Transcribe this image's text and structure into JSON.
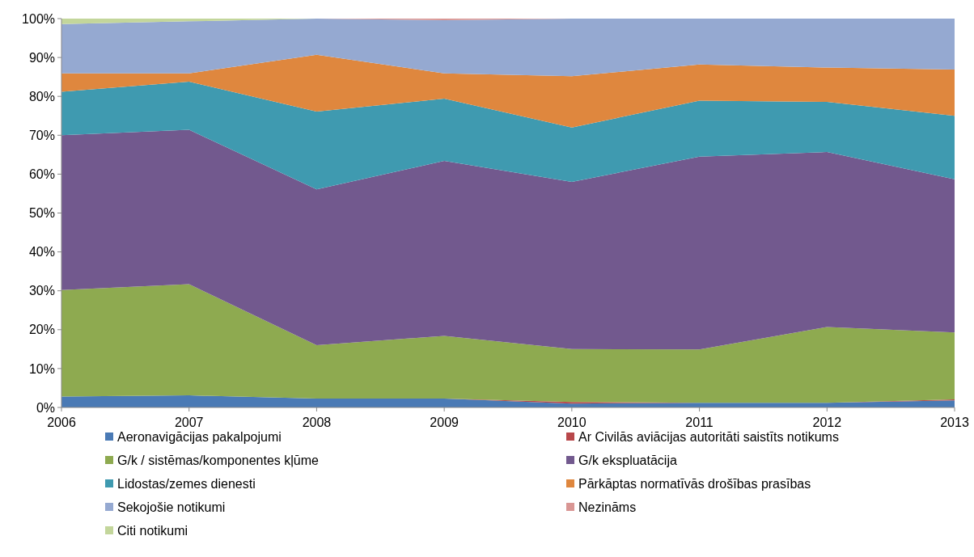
{
  "chart_data": {
    "type": "area",
    "stacked": true,
    "x": [
      2006,
      2007,
      2008,
      2009,
      2010,
      2011,
      2012,
      2013
    ],
    "xlim": [
      2006,
      2013
    ],
    "xticks": [
      2006,
      2007,
      2008,
      2009,
      2010,
      2011,
      2012,
      2013
    ],
    "ylim": [
      0,
      100
    ],
    "yticks": [
      {
        "value": 0,
        "label": "0%"
      },
      {
        "value": 10,
        "label": "10%"
      },
      {
        "value": 20,
        "label": "20%"
      },
      {
        "value": 30,
        "label": "30%"
      },
      {
        "value": 40,
        "label": "40%"
      },
      {
        "value": 50,
        "label": "50%"
      },
      {
        "value": 60,
        "label": "60%"
      },
      {
        "value": 70,
        "label": "70%"
      },
      {
        "value": 80,
        "label": "80%"
      },
      {
        "value": 90,
        "label": "90%"
      },
      {
        "value": 100,
        "label": "100%"
      }
    ],
    "legend": "bottom",
    "series": [
      {
        "name": "Aeronavigācijas pakalpojumi",
        "color": "#4a7ab5",
        "values": [
          2.8,
          3.1,
          2.3,
          2.3,
          1.0,
          1.2,
          1.2,
          1.8
        ]
      },
      {
        "name": "Ar Civilās aviācijas autoritāti saistīts notikums",
        "color": "#b8474a",
        "values": [
          0,
          0,
          0,
          0,
          0.4,
          0,
          0,
          0.3
        ]
      },
      {
        "name": "G/k / sistēmas/komponentes kļūme",
        "color": "#8eaa50",
        "values": [
          27.4,
          28.6,
          13.7,
          16.1,
          13.6,
          13.7,
          19.5,
          17.2
        ]
      },
      {
        "name": "G/k ekspluatācija",
        "color": "#72598e",
        "values": [
          39.8,
          39.7,
          40.1,
          45.0,
          43.0,
          49.6,
          45.0,
          39.4
        ]
      },
      {
        "name": "Lidostas/zemes dienesti",
        "color": "#3f9ab0",
        "values": [
          11.2,
          12.4,
          20.0,
          16.0,
          14.0,
          14.4,
          12.9,
          16.3
        ]
      },
      {
        "name": "Pārkāptas normatīvās drošības prasības",
        "color": "#df873e",
        "values": [
          4.7,
          2.1,
          14.6,
          6.5,
          13.2,
          9.3,
          8.8,
          11.9
        ]
      },
      {
        "name": "Sekojošie notikumi",
        "color": "#95a9d1",
        "values": [
          12.7,
          13.4,
          9.3,
          13.7,
          14.8,
          11.8,
          12.6,
          13.1
        ]
      },
      {
        "name": "Nezināms",
        "color": "#d99694",
        "values": [
          null,
          null,
          0,
          0.4,
          0,
          null,
          null,
          null
        ]
      },
      {
        "name": "Citi notikumi",
        "color": "#c3d69b",
        "values": [
          1.4,
          0.7,
          0,
          null,
          null,
          null,
          null,
          null
        ]
      }
    ]
  }
}
